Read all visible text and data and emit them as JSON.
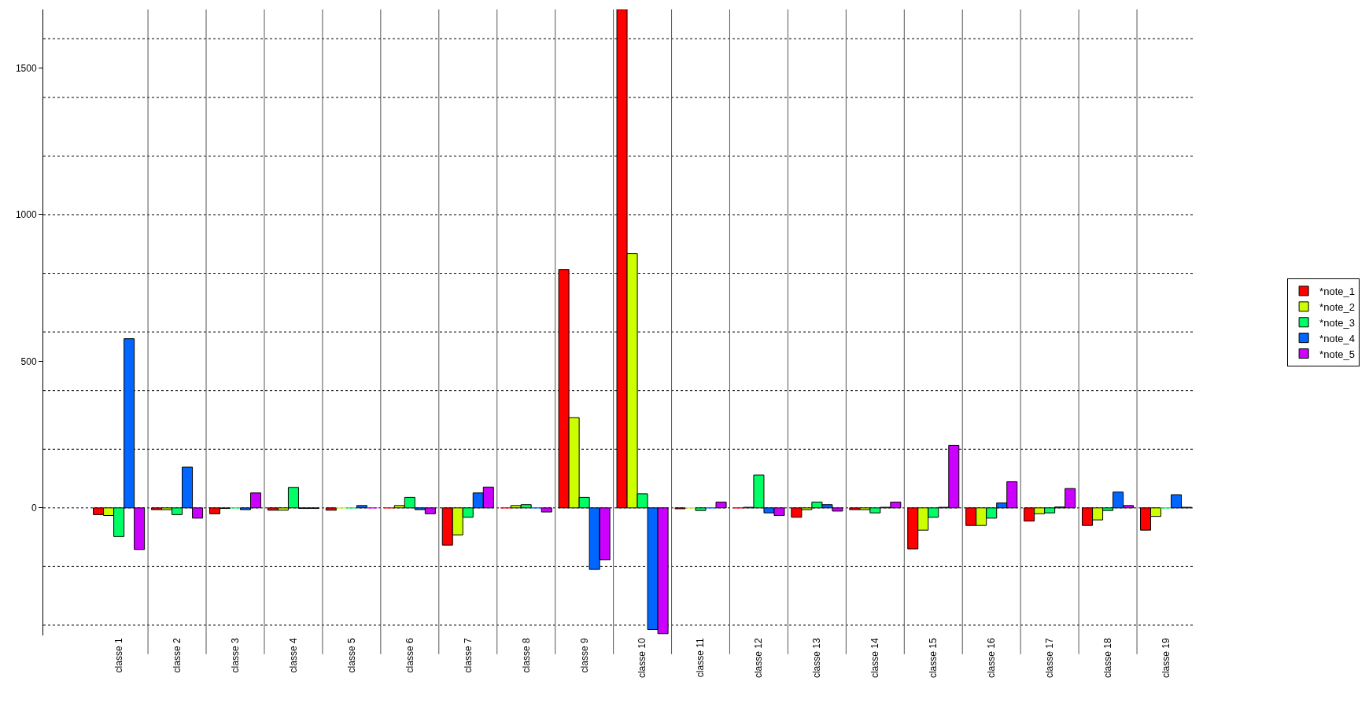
{
  "chart_data": {
    "type": "bar",
    "categories": [
      "classe 1",
      "classe 2",
      "classe 3",
      "classe 4",
      "classe 5",
      "classe 6",
      "classe 7",
      "classe 8",
      "classe 9",
      "classe 10",
      "classe 11",
      "classe 12",
      "classe 13",
      "classe 14",
      "classe 15",
      "classe 16",
      "classe 17",
      "classe 18",
      "classe 19"
    ],
    "series": [
      {
        "name": "*note_1",
        "color": "#ff0000",
        "values": [
          -23,
          -6,
          -20,
          -8,
          -8,
          0,
          -127,
          0,
          813,
          1700,
          -3,
          0,
          -32,
          -6,
          -140,
          -60,
          -45,
          -60,
          -76
        ]
      },
      {
        "name": "*note_2",
        "color": "#ccff00",
        "values": [
          -26,
          -6,
          -2,
          -8,
          0,
          8,
          -92,
          8,
          308,
          867,
          0,
          2,
          -6,
          -6,
          -76,
          -60,
          -20,
          -41,
          -29
        ]
      },
      {
        "name": "*note_3",
        "color": "#00ff66",
        "values": [
          -98,
          -23,
          0,
          70,
          0,
          36,
          -32,
          11,
          36,
          48,
          -9,
          112,
          20,
          -17,
          -32,
          -35,
          -17,
          -9,
          0
        ]
      },
      {
        "name": "*note_4",
        "color": "#0066ff",
        "values": [
          577,
          139,
          -6,
          -2,
          8,
          -6,
          51,
          0,
          -210,
          -415,
          0,
          -17,
          11,
          2,
          2,
          17,
          3,
          54,
          45
        ]
      },
      {
        "name": "*note_5",
        "color": "#cc00ff",
        "values": [
          -142,
          -35,
          51,
          -2,
          0,
          -20,
          71,
          -14,
          -177,
          -429,
          20,
          -26,
          -11,
          20,
          213,
          89,
          66,
          8,
          2
        ]
      }
    ],
    "ylim": [
      -435,
      1700
    ],
    "yticks": [
      0,
      500,
      1000,
      1500
    ],
    "grid": "x",
    "legend": "right",
    "ref_lines": [
      {
        "axis": "y",
        "value": 1600,
        "line_style": "dotted"
      },
      {
        "axis": "y",
        "value": 1400,
        "line_style": "dotted"
      },
      {
        "axis": "y",
        "value": 1200,
        "line_style": "dotted"
      },
      {
        "axis": "y",
        "value": 1000,
        "line_style": "dotted"
      },
      {
        "axis": "y",
        "value": 800,
        "line_style": "dotted"
      },
      {
        "axis": "y",
        "value": 600,
        "line_style": "dotted"
      },
      {
        "axis": "y",
        "value": 400,
        "line_style": "dotted"
      },
      {
        "axis": "y",
        "value": 200,
        "line_style": "dotted"
      },
      {
        "axis": "y",
        "value": 0,
        "line_style": "dotted"
      },
      {
        "axis": "y",
        "value": -200,
        "line_style": "dotted"
      },
      {
        "axis": "y",
        "value": -400,
        "line_style": "dotted"
      }
    ]
  }
}
